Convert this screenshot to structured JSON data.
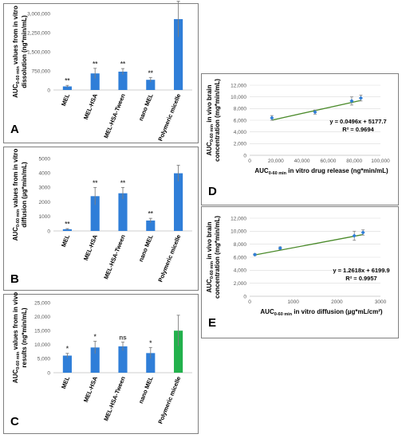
{
  "colors": {
    "bar": "#2f7ed8",
    "highlight": "#22b14c",
    "trend": "#4a8a2a",
    "point": "#2f7ed8",
    "error": "#7f7f7f"
  },
  "chart_data": [
    {
      "id": "A",
      "type": "bar",
      "letter": "A",
      "categories": [
        "MEL",
        "MEL-HSA",
        "MEL-HSA-Tween",
        "nano MEL",
        "Polymeric micelle"
      ],
      "values": [
        140000,
        650000,
        720000,
        400000,
        2780000
      ],
      "errors": [
        40000,
        200000,
        120000,
        90000,
        700000
      ],
      "significance": [
        "**",
        "**",
        "**",
        "**",
        ""
      ],
      "highlight": [
        false,
        false,
        false,
        false,
        false
      ],
      "ylabel_line1": "AUC0-60 min values from in vitro",
      "ylabel_line2": "dissolution (ng*min/mL)",
      "ylim": [
        0,
        3000000
      ],
      "yticks": [
        0,
        750000,
        1500000,
        2250000,
        3000000
      ],
      "ytick_labels": [
        "0",
        "750,000",
        "1,500,000",
        "2,250,000",
        "3,000,000"
      ]
    },
    {
      "id": "B",
      "type": "bar",
      "letter": "B",
      "categories": [
        "MEL",
        "MEL-HSA",
        "MEL-HSA-Tween",
        "nano MEL",
        "Polymeric micelle"
      ],
      "values": [
        120,
        2400,
        2600,
        720,
        3980
      ],
      "errors": [
        40,
        600,
        400,
        150,
        550
      ],
      "significance": [
        "**",
        "**",
        "**",
        "**",
        ""
      ],
      "highlight": [
        false,
        false,
        false,
        false,
        false
      ],
      "ylabel_line1": "AUC0-60 min values from in vitro",
      "ylabel_line2": "diffusion (µg*min/mL)",
      "ylim": [
        0,
        5000
      ],
      "yticks": [
        0,
        1000,
        2000,
        3000,
        4000,
        5000
      ],
      "ytick_labels": [
        "0",
        "1000",
        "2000",
        "3000",
        "4000",
        "5000"
      ]
    },
    {
      "id": "C",
      "type": "bar",
      "letter": "C",
      "categories": [
        "MEL",
        "MEL-HSA",
        "MEL-HSA-Tween",
        "nano MEL",
        "Polymeric micelle"
      ],
      "values": [
        6100,
        9000,
        9400,
        7000,
        15000
      ],
      "errors": [
        800,
        2200,
        1500,
        2000,
        5500
      ],
      "significance": [
        "*",
        "*",
        "ns",
        "*",
        ""
      ],
      "highlight": [
        false,
        false,
        false,
        false,
        true
      ],
      "ylabel_line1": "AUC0-60 min values from in vivo",
      "ylabel_line2": "results (ng*min/mL)",
      "ylim": [
        0,
        25000
      ],
      "yticks": [
        0,
        5000,
        10000,
        15000,
        20000,
        25000
      ],
      "ytick_labels": [
        "0",
        "5,000",
        "10,000",
        "15,000",
        "20,000",
        "25,000"
      ]
    },
    {
      "id": "D",
      "type": "scatter",
      "letter": "D",
      "x": [
        17000,
        50000,
        78000,
        85000
      ],
      "y": [
        6400,
        7400,
        9300,
        9800
      ],
      "yerr": [
        400,
        350,
        700,
        500
      ],
      "trend": {
        "slope": 0.0496,
        "intercept": 5177.7,
        "x_range": [
          17000,
          85000
        ]
      },
      "equation": "y = 0.0496x + 5177.7",
      "r2": "R² = 0.9694",
      "xlabel": "AUC0-60 min in vitro drug release (ng*min/mL)",
      "ylabel_line1": "AUC0-60 min in vivo  brain",
      "ylabel_line2": "concentration (mg*min/mL)",
      "xlim": [
        0,
        100000
      ],
      "ylim": [
        0,
        12000
      ],
      "xticks": [
        0,
        20000,
        40000,
        60000,
        80000,
        100000
      ],
      "xtick_labels": [
        "0",
        "20,000",
        "40,000",
        "60,000",
        "80,000",
        "100,000"
      ],
      "yticks": [
        0,
        2000,
        4000,
        6000,
        8000,
        10000,
        12000
      ],
      "ytick_labels": [
        "0",
        "2,000",
        "4,000",
        "6,000",
        "8,000",
        "10,000",
        "12,000"
      ]
    },
    {
      "id": "E",
      "type": "scatter",
      "letter": "E",
      "x": [
        120,
        700,
        2400,
        2600
      ],
      "y": [
        6400,
        7400,
        9300,
        9800
      ],
      "yerr": [
        150,
        200,
        700,
        400
      ],
      "trend": {
        "slope": 1.2618,
        "intercept": 6199.9,
        "x_range": [
          120,
          2600
        ]
      },
      "equation": "y = 1.2618x + 6199.9",
      "r2": "R² = 0.9957",
      "xlabel": "AUC0-60 min in vitro diffusion (µg*mL/cm²)",
      "ylabel_line1": "AUC0-60 min in vivo  brain",
      "ylabel_line2": "concentration (mg*min/mL)",
      "xlim": [
        0,
        3000
      ],
      "ylim": [
        0,
        12000
      ],
      "xticks": [
        0,
        1000,
        2000,
        3000
      ],
      "xtick_labels": [
        "0",
        "1000",
        "2000",
        "3000"
      ],
      "yticks": [
        0,
        2000,
        4000,
        6000,
        8000,
        10000,
        12000
      ],
      "ytick_labels": [
        "0",
        "2,000",
        "4,000",
        "6,000",
        "8,000",
        "10,000",
        "12,000"
      ]
    }
  ]
}
